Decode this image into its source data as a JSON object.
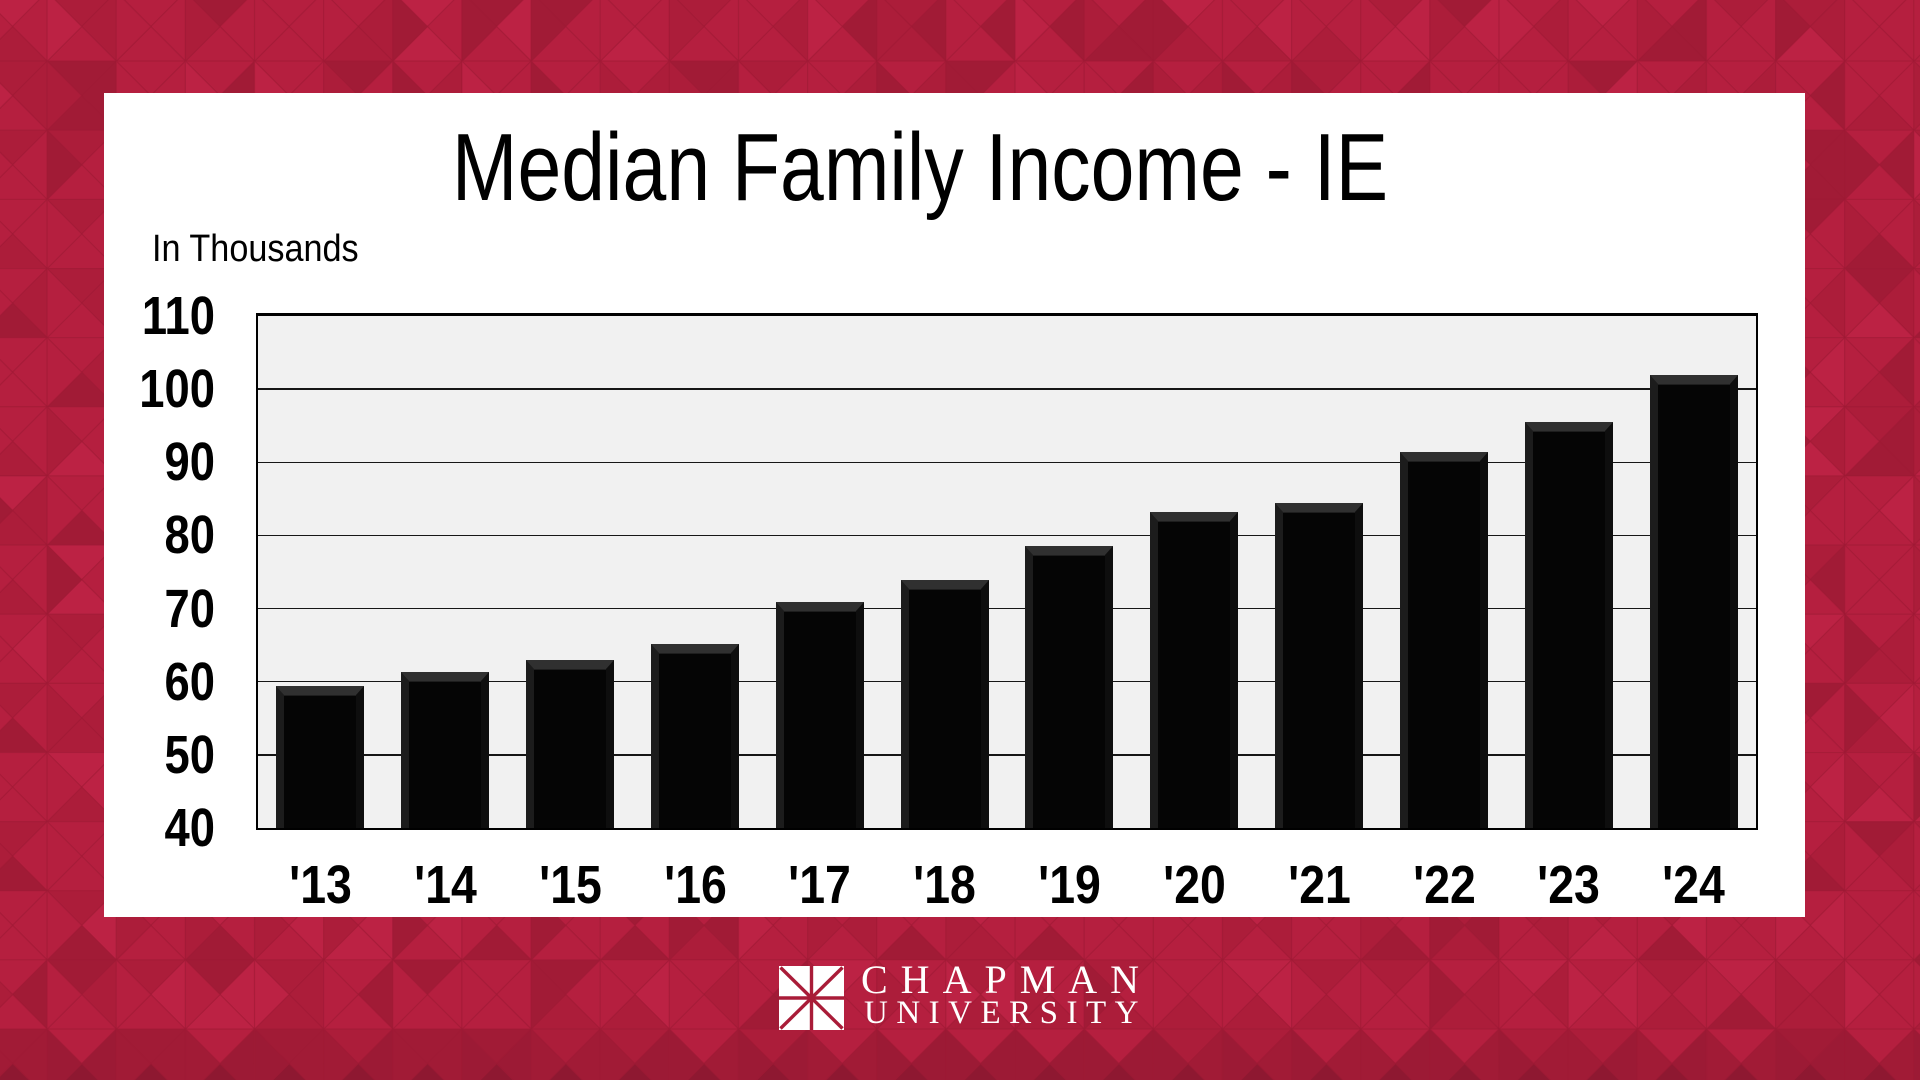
{
  "chart_data": {
    "type": "bar",
    "title": "Median Family Income - IE",
    "ylabel": "In Thousands",
    "xlabel": "",
    "categories": [
      "'13",
      "'14",
      "'15",
      "'16",
      "'17",
      "'18",
      "'19",
      "'20",
      "'21",
      "'22",
      "'23",
      "'24"
    ],
    "values": [
      59.4,
      61.3,
      63.0,
      65.2,
      70.9,
      73.9,
      78.5,
      83.2,
      84.4,
      91.4,
      95.5,
      102.0
    ],
    "ylim": [
      40,
      110
    ],
    "ytick_step": 10,
    "yticks": [
      "110",
      "100",
      "90",
      "80",
      "70",
      "60",
      "50",
      "40"
    ],
    "grid": "horizontal",
    "legend": "none",
    "bar_color": "#050505",
    "plot_bg": "#F1F1F1"
  },
  "footer": {
    "line1": "CHAPMAN",
    "line2": "UNIVERSITY"
  },
  "theme": {
    "crimson_base": "#B51F3F",
    "crimson_mid": "#AC1D3A",
    "crimson_dark": "#A11B36",
    "crimson_light": "#BC2244",
    "band_dark": "#8E1831",
    "band_mid": "#9C1A35",
    "pattern_line": "#9E1A35",
    "panel_bg": "#FFFFFF",
    "logo_red": "#A91C38",
    "text_black": "#000000",
    "text_white": "#FFFFFF"
  }
}
